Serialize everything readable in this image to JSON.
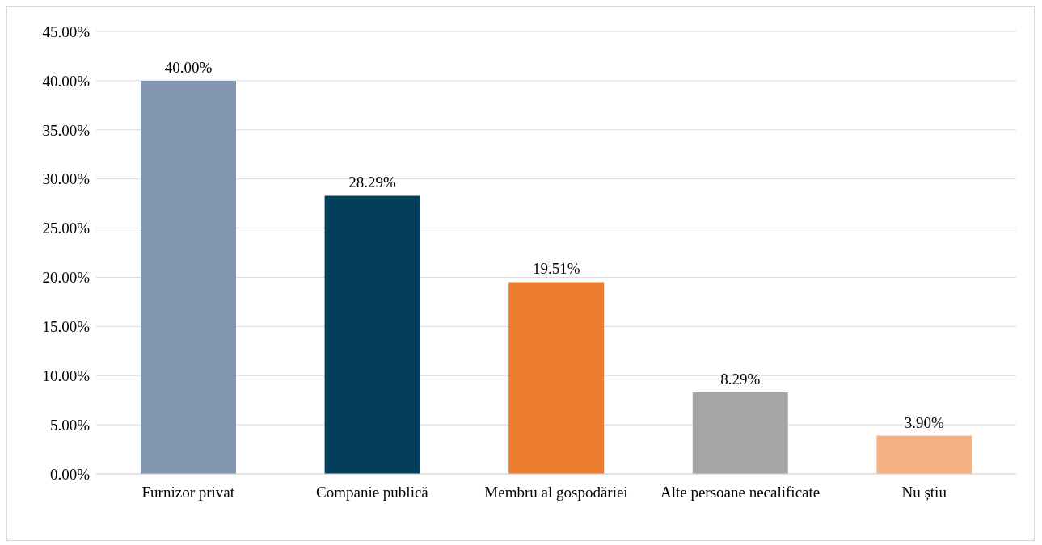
{
  "chart_data": {
    "type": "bar",
    "categories": [
      "Furnizor privat",
      "Companie publică",
      "Membru al gospodăriei",
      "Alte persoane necalificate",
      "Nu știu"
    ],
    "values": [
      40.0,
      28.29,
      19.51,
      8.29,
      3.9
    ],
    "colors": [
      "#8497b0",
      "#033e5a",
      "#ed7d31",
      "#a5a5a5",
      "#f4b183"
    ],
    "value_labels": [
      "40.00%",
      "28.29%",
      "19.51%",
      "8.29%",
      "3.90%"
    ],
    "ylim": [
      0,
      45
    ],
    "yticks": [
      {
        "value": 0,
        "label": "0.00%"
      },
      {
        "value": 5,
        "label": "5.00%"
      },
      {
        "value": 10,
        "label": "10.00%"
      },
      {
        "value": 15,
        "label": "15.00%"
      },
      {
        "value": 20,
        "label": "20.00%"
      },
      {
        "value": 25,
        "label": "25.00%"
      },
      {
        "value": 30,
        "label": "30.00%"
      },
      {
        "value": 35,
        "label": "35.00%"
      },
      {
        "value": 40,
        "label": "40.00%"
      },
      {
        "value": 45,
        "label": "45.00%"
      }
    ],
    "grid": "y",
    "legend": false
  }
}
